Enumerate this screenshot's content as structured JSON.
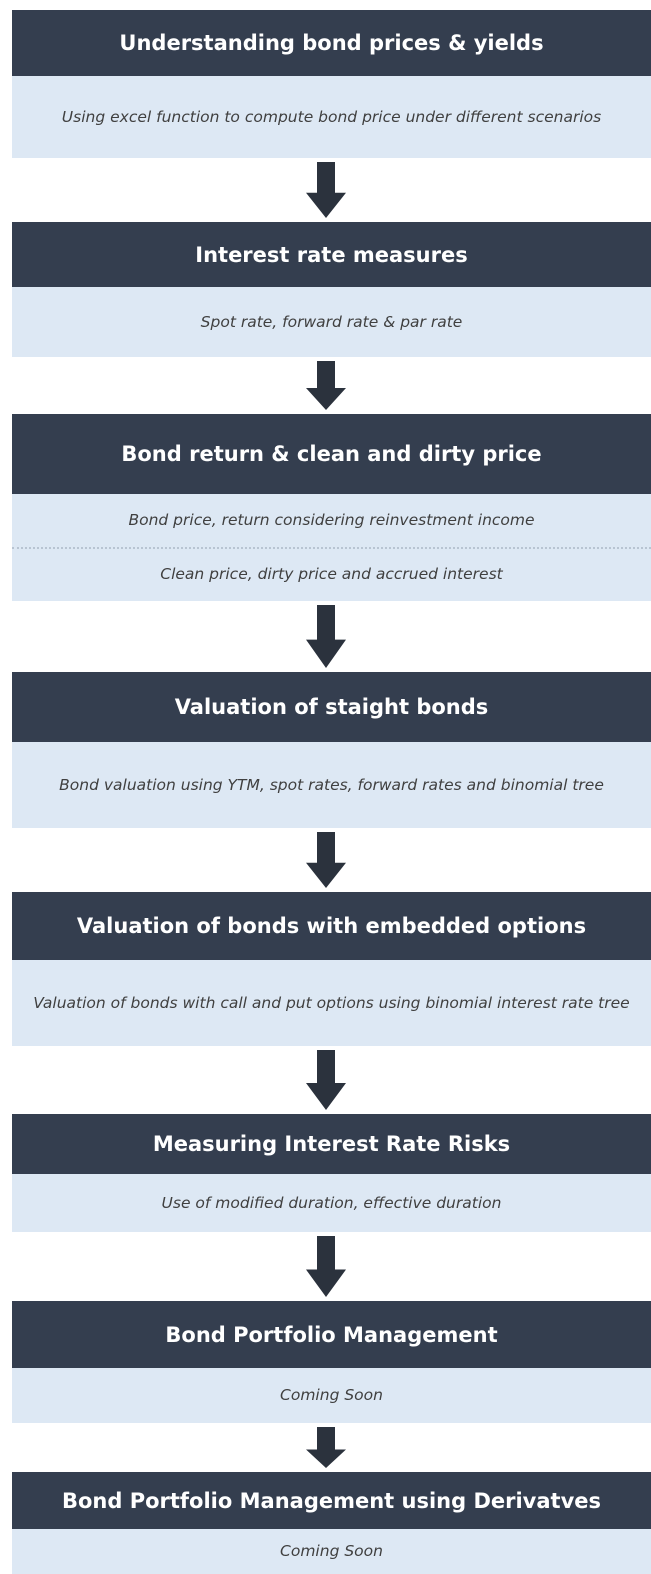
{
  "steps": [
    {
      "title": "Understanding bond prices & yields",
      "details": [
        "Using excel function to compute bond price under different scenarios"
      ]
    },
    {
      "title": "Interest rate measures",
      "details": [
        "Spot rate, forward rate & par rate"
      ]
    },
    {
      "title": "Bond return & clean and dirty price",
      "details": [
        "Bond price, return considering reinvestment income",
        "Clean price, dirty price and accrued interest"
      ]
    },
    {
      "title": "Valuation of staight bonds",
      "details": [
        "Bond valuation using YTM, spot rates, forward rates and binomial tree"
      ]
    },
    {
      "title": "Valuation of bonds with embedded options",
      "details": [
        "Valuation of bonds with call and put options using binomial interest rate tree"
      ]
    },
    {
      "title": "Measuring Interest Rate Risks",
      "details": [
        "Use of modified duration, effective duration"
      ]
    },
    {
      "title": "Bond Portfolio Management",
      "details": [
        "Coming Soon"
      ]
    },
    {
      "title": "Bond Portfolio Management using Derivatves",
      "details": [
        "Coming Soon"
      ]
    }
  ]
}
